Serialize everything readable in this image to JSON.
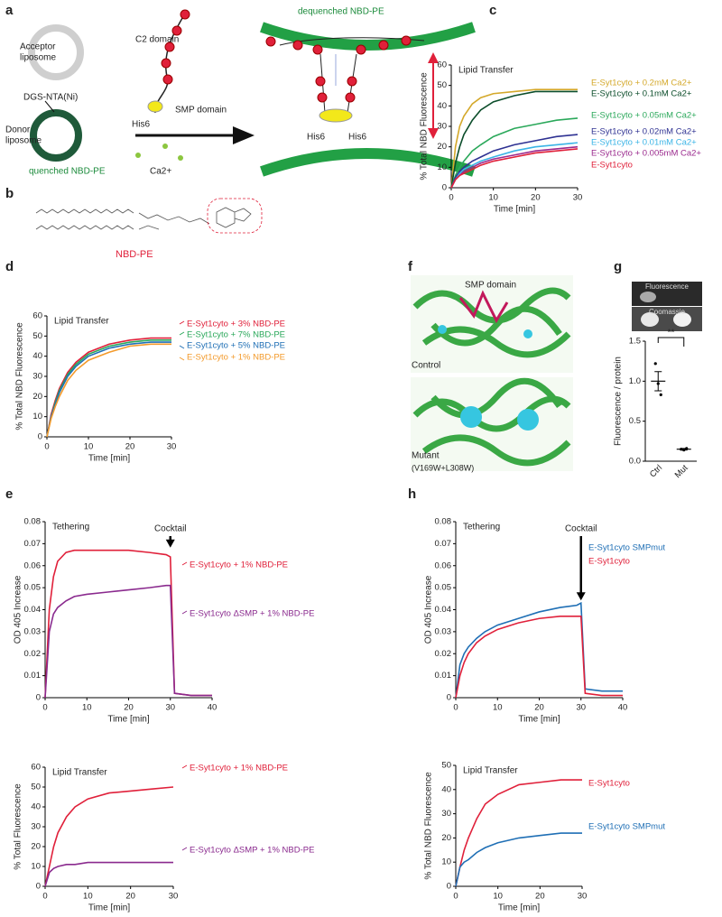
{
  "panels": [
    "a",
    "b",
    "c",
    "d",
    "e",
    "f",
    "g",
    "h"
  ],
  "diagram": {
    "acceptor_label": [
      "Acceptor",
      "liposome"
    ],
    "donor_label": [
      "Donor",
      "liposome"
    ],
    "dgs_label": "DGS-NTA(Ni)",
    "quenched_label": "quenched NBD-PE",
    "c2_label": "C2 domain",
    "smp_label": "SMP domain",
    "his_label": "His6",
    "ca_label": "Ca2+",
    "dequenched_label": "dequenched NBD-PE",
    "nbd_label": "NBD-PE"
  },
  "structure": {
    "smp_label": "SMP domain",
    "control_label": "Control",
    "mutant_label": [
      "Mutant",
      "(V169W+L308W)"
    ]
  },
  "gel": {
    "top_label": "Fluorescence",
    "bottom_label": "Coomassie"
  },
  "chart_data": [
    {
      "type": "line",
      "title": "Lipid Transfer",
      "x_label": "Time [min]",
      "y_label": "% Total NBD Fluorescence",
      "x": [
        0,
        1,
        2,
        3,
        5,
        7,
        10,
        15,
        20,
        25,
        30
      ],
      "xlim": [
        0,
        30
      ],
      "ylim": [
        0,
        60
      ],
      "xticks": [
        0,
        10,
        20,
        30
      ],
      "yticks": [
        0,
        10,
        20,
        30,
        40,
        50,
        60
      ],
      "series": [
        {
          "name": "E-Syt1cyto + 0.2mM Ca2+",
          "color": "#d4a82a",
          "values": [
            0,
            20,
            30,
            35,
            41,
            44,
            46,
            47,
            48,
            48,
            48
          ]
        },
        {
          "name": "E-Syt1cyto + 0.1mM Ca2+",
          "color": "#0b4d2a",
          "values": [
            0,
            12,
            20,
            26,
            33,
            38,
            42,
            45,
            47,
            47,
            47
          ]
        },
        {
          "name": "E-Syt1cyto + 0.05mM Ca2+",
          "color": "#2aa85a",
          "values": [
            0,
            6,
            10,
            13,
            18,
            21,
            25,
            29,
            31,
            33,
            34
          ]
        },
        {
          "name": "E-Syt1cyto + 0.02mM Ca2+",
          "color": "#2e3192",
          "values": [
            0,
            5,
            8,
            10,
            13,
            15,
            18,
            21,
            23,
            25,
            26
          ]
        },
        {
          "name": "E-Syt1cyto + 0.01mM Ca2+",
          "color": "#3ab4e6",
          "values": [
            0,
            4,
            7,
            9,
            11,
            13,
            15,
            18,
            20,
            21,
            22
          ]
        },
        {
          "name": "E-Syt1cyto + 0.005mM Ca2+",
          "color": "#9b2a8e",
          "values": [
            0,
            4,
            6,
            8,
            10,
            12,
            14,
            16,
            18,
            19,
            20
          ]
        },
        {
          "name": "E-Syt1cyto",
          "color": "#e0203a",
          "values": [
            0,
            4,
            6,
            7,
            9,
            11,
            13,
            15,
            17,
            18,
            19
          ]
        }
      ]
    },
    {
      "type": "line",
      "title": "Lipid Transfer",
      "x_label": "Time [min]",
      "y_label": "% Total NBD Fluorescence",
      "x": [
        0,
        1,
        2,
        3,
        5,
        7,
        10,
        15,
        20,
        25,
        30
      ],
      "xlim": [
        0,
        30
      ],
      "ylim": [
        0,
        60
      ],
      "xticks": [
        0,
        10,
        20,
        30
      ],
      "yticks": [
        0,
        10,
        20,
        30,
        40,
        50,
        60
      ],
      "series": [
        {
          "name": "E-Syt1cyto + 3% NBD-PE",
          "color": "#e0203a",
          "values": [
            0,
            11,
            18,
            24,
            32,
            37,
            42,
            46,
            48,
            49,
            49
          ]
        },
        {
          "name": "E-Syt1cyto + 7% NBD-PE",
          "color": "#2aa85a",
          "values": [
            0,
            10,
            17,
            23,
            31,
            36,
            41,
            45,
            47,
            48,
            48
          ]
        },
        {
          "name": "E-Syt1cyto + 5% NBD-PE",
          "color": "#1f6fb5",
          "values": [
            0,
            10,
            16,
            22,
            30,
            35,
            40,
            44,
            46,
            47,
            47
          ]
        },
        {
          "name": "E-Syt1cyto + 1% NBD-PE",
          "color": "#f39a2b",
          "values": [
            0,
            9,
            15,
            20,
            28,
            33,
            38,
            42,
            45,
            46,
            46
          ]
        }
      ]
    },
    {
      "type": "line",
      "title": "Tethering",
      "x_label": "Time [min]",
      "y_label": "OD 405 Increase",
      "annotation": {
        "text": "Cocktail",
        "x": 30
      },
      "x": [
        0,
        1,
        2,
        3,
        5,
        7,
        10,
        15,
        20,
        25,
        29,
        30,
        31,
        35,
        40
      ],
      "xlim": [
        0,
        40
      ],
      "ylim": [
        0,
        0.08
      ],
      "xticks": [
        0,
        10,
        20,
        30,
        40
      ],
      "yticks": [
        0,
        0.01,
        0.02,
        0.03,
        0.04,
        0.05,
        0.06,
        0.07,
        0.08
      ],
      "series": [
        {
          "name": "E-Syt1cyto + 1% NBD-PE",
          "color": "#e0203a",
          "values": [
            0,
            0.04,
            0.055,
            0.062,
            0.066,
            0.067,
            0.067,
            0.067,
            0.067,
            0.066,
            0.065,
            0.064,
            0.002,
            0.001,
            0.001
          ]
        },
        {
          "name": "E-Syt1cyto ΔSMP + 1% NBD-PE",
          "color": "#8a2a8e",
          "values": [
            0,
            0.03,
            0.038,
            0.041,
            0.044,
            0.046,
            0.047,
            0.048,
            0.049,
            0.05,
            0.051,
            0.051,
            0.002,
            0.001,
            0.001
          ]
        }
      ]
    },
    {
      "type": "line",
      "title": "Lipid Transfer",
      "x_label": "Time [min]",
      "y_label": "% Total Fluorescence",
      "x": [
        0,
        1,
        2,
        3,
        5,
        7,
        10,
        15,
        20,
        25,
        30
      ],
      "xlim": [
        0,
        30
      ],
      "ylim": [
        0,
        60
      ],
      "xticks": [
        0,
        10,
        20,
        30
      ],
      "yticks": [
        0,
        10,
        20,
        30,
        40,
        50,
        60
      ],
      "series": [
        {
          "name": "E-Syt1cyto + 1% NBD-PE",
          "color": "#e0203a",
          "values": [
            0,
            10,
            20,
            27,
            35,
            40,
            44,
            47,
            48,
            49,
            50
          ]
        },
        {
          "name": "E-Syt1cyto ΔSMP + 1% NBD-PE",
          "color": "#8a2a8e",
          "values": [
            0,
            7,
            9,
            10,
            11,
            11,
            12,
            12,
            12,
            12,
            12
          ]
        }
      ]
    },
    {
      "type": "line",
      "title": "Tethering",
      "x_label": "Time [min]",
      "y_label": "OD 405 Increase",
      "annotation": {
        "text": "Cocktail",
        "x": 30
      },
      "x": [
        0,
        1,
        2,
        3,
        5,
        7,
        10,
        15,
        20,
        25,
        29,
        30,
        31,
        35,
        40
      ],
      "xlim": [
        0,
        40
      ],
      "ylim": [
        0,
        0.08
      ],
      "xticks": [
        0,
        10,
        20,
        30,
        40
      ],
      "yticks": [
        0,
        0.01,
        0.02,
        0.03,
        0.04,
        0.05,
        0.06,
        0.07,
        0.08
      ],
      "series": [
        {
          "name": "E-Syt1cyto SMPmut",
          "color": "#1f6fb5",
          "values": [
            0,
            0.015,
            0.02,
            0.023,
            0.027,
            0.03,
            0.033,
            0.036,
            0.039,
            0.041,
            0.042,
            0.043,
            0.004,
            0.003,
            0.003
          ]
        },
        {
          "name": "E-Syt1cyto",
          "color": "#e0203a",
          "values": [
            0,
            0.01,
            0.016,
            0.02,
            0.025,
            0.028,
            0.031,
            0.034,
            0.036,
            0.037,
            0.037,
            0.037,
            0.002,
            0.001,
            0.001
          ]
        }
      ]
    },
    {
      "type": "line",
      "title": "Lipid Transfer",
      "x_label": "Time [min]",
      "y_label": "% Total NBD Fluorescence",
      "x": [
        0,
        1,
        2,
        3,
        5,
        7,
        10,
        15,
        20,
        25,
        30
      ],
      "xlim": [
        0,
        30
      ],
      "ylim": [
        0,
        50
      ],
      "xticks": [
        0,
        10,
        20,
        30
      ],
      "yticks": [
        0,
        10,
        20,
        30,
        40,
        50
      ],
      "series": [
        {
          "name": "E-Syt1cyto",
          "color": "#e0203a",
          "values": [
            0,
            8,
            15,
            20,
            28,
            34,
            38,
            42,
            43,
            44,
            44
          ]
        },
        {
          "name": "E-Syt1cyto SMPmut",
          "color": "#1f6fb5",
          "values": [
            0,
            8,
            10,
            11,
            14,
            16,
            18,
            20,
            21,
            22,
            22
          ]
        }
      ]
    },
    {
      "type": "dot",
      "y_label": "Fluorescence / protein",
      "categories": [
        "Ctrl",
        "Mut"
      ],
      "values": [
        1.0,
        0.15
      ],
      "errors": [
        0.12,
        0.01
      ],
      "points": [
        [
          1.22,
          0.97,
          0.83
        ],
        [
          0.15,
          0.14,
          0.16
        ]
      ],
      "significance": "**",
      "color": "#000000",
      "ylim": [
        0,
        1.5
      ],
      "yticks": [
        {
          "value": 0,
          "label": "0.0"
        },
        0.5,
        {
          "value": 1,
          "label": "1.0"
        },
        1.5
      ]
    }
  ]
}
